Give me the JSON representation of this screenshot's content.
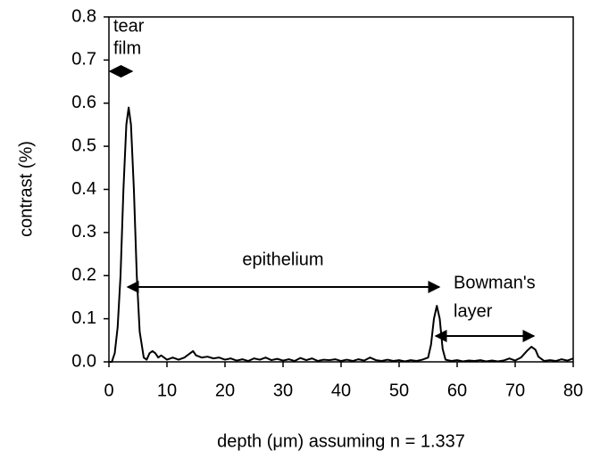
{
  "chart_data": {
    "type": "line",
    "x_label": "depth (μm) assuming n = 1.337",
    "y_label": "contrast (%)",
    "annotations": [
      "tear",
      "film",
      "epithelium",
      "Bowman's",
      "layer"
    ],
    "color": "#000000",
    "x": [
      0,
      0.5,
      1,
      1.5,
      2,
      2.5,
      3,
      3.4,
      3.8,
      4.3,
      4.8,
      5.3,
      6,
      6.5,
      7,
      7.5,
      8,
      8.5,
      9,
      9.5,
      10,
      11,
      12,
      13,
      14,
      14.5,
      15,
      16,
      17,
      18,
      19,
      20,
      21,
      22,
      23,
      24,
      25,
      26,
      27,
      28,
      29,
      30,
      31,
      32,
      33,
      34,
      35,
      36,
      37,
      38,
      39,
      40,
      41,
      42,
      43,
      44,
      45,
      46,
      47,
      48,
      49,
      50,
      51,
      52,
      53,
      54,
      55,
      55.5,
      56,
      56.5,
      57,
      57.5,
      58,
      59,
      60,
      61,
      62,
      63,
      64,
      65,
      66,
      67,
      68,
      69,
      70,
      71,
      72,
      72.8,
      73.5,
      74,
      75,
      76,
      77,
      78,
      79,
      80
    ],
    "values": [
      0,
      0,
      0.02,
      0.08,
      0.2,
      0.4,
      0.55,
      0.59,
      0.55,
      0.4,
      0.2,
      0.07,
      0.01,
      0.005,
      0.02,
      0.025,
      0.02,
      0.01,
      0.015,
      0.01,
      0.005,
      0.01,
      0.005,
      0.01,
      0.02,
      0.025,
      0.015,
      0.01,
      0.012,
      0.008,
      0.01,
      0.005,
      0.008,
      0.003,
      0.006,
      0.002,
      0.008,
      0.005,
      0.01,
      0.004,
      0.007,
      0.003,
      0.006,
      0.002,
      0.009,
      0.004,
      0.008,
      0.002,
      0.005,
      0.004,
      0.006,
      0.002,
      0.005,
      0.002,
      0.006,
      0.003,
      0.01,
      0.004,
      0.002,
      0.005,
      0.002,
      0.004,
      0.001,
      0.004,
      0.002,
      0.005,
      0.01,
      0.04,
      0.1,
      0.13,
      0.1,
      0.03,
      0.005,
      0.002,
      0.004,
      0.001,
      0.003,
      0.002,
      0.004,
      0.001,
      0.003,
      0.001,
      0.003,
      0.008,
      0.003,
      0.01,
      0.025,
      0.035,
      0.028,
      0.012,
      0.002,
      0.004,
      0.002,
      0.006,
      0.003,
      0.008
    ],
    "xlim": [
      0,
      80
    ],
    "xticks": [
      0,
      10,
      20,
      30,
      40,
      50,
      60,
      70,
      80
    ],
    "ylim": [
      0,
      0.8
    ],
    "yticks": [
      {
        "value": 0,
        "label": "0.0"
      },
      0.1,
      0.2,
      0.3,
      0.4,
      0.5,
      0.6,
      0.7,
      0.8
    ]
  }
}
